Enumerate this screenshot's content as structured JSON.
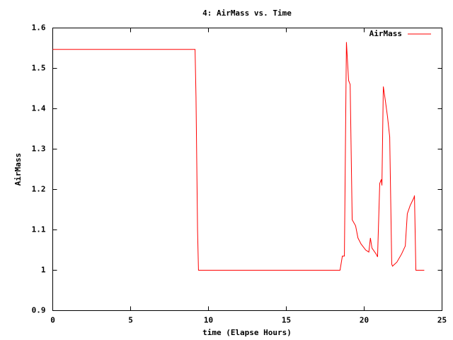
{
  "chart_data": {
    "type": "line",
    "title": "4: AirMass vs. Time",
    "xlabel": "time (Elapse Hours)",
    "ylabel": "AirMass",
    "xlim": [
      0,
      25
    ],
    "xticks": [
      0,
      5,
      10,
      15,
      20,
      25
    ],
    "ylim": [
      0.9,
      1.6
    ],
    "yticks": [
      0.9,
      1,
      1.1,
      1.2,
      1.3,
      1.4,
      1.5,
      1.6
    ],
    "legend": "top-right",
    "series": [
      {
        "name": "AirMass",
        "color": "#ff0000",
        "x": [
          0,
          9.14,
          9.2,
          9.3,
          9.36,
          18.45,
          18.6,
          18.73,
          18.86,
          19.0,
          19.1,
          19.23,
          19.45,
          19.6,
          19.8,
          20.1,
          20.3,
          20.4,
          20.5,
          20.77,
          20.86,
          21.0,
          21.1,
          21.14,
          21.23,
          21.36,
          21.5,
          21.64,
          21.77,
          21.82,
          22.1,
          22.4,
          22.64,
          22.77,
          22.95,
          23.2,
          23.23,
          23.32,
          23.86
        ],
        "values": [
          1.547,
          1.547,
          1.43,
          1.1,
          1.0,
          1.0,
          1.035,
          1.035,
          1.565,
          1.47,
          1.46,
          1.125,
          1.11,
          1.08,
          1.065,
          1.05,
          1.045,
          1.08,
          1.055,
          1.04,
          1.033,
          1.215,
          1.225,
          1.21,
          1.455,
          1.42,
          1.38,
          1.33,
          1.015,
          1.01,
          1.02,
          1.04,
          1.06,
          1.14,
          1.16,
          1.18,
          1.185,
          1.0,
          1.0
        ]
      }
    ]
  }
}
